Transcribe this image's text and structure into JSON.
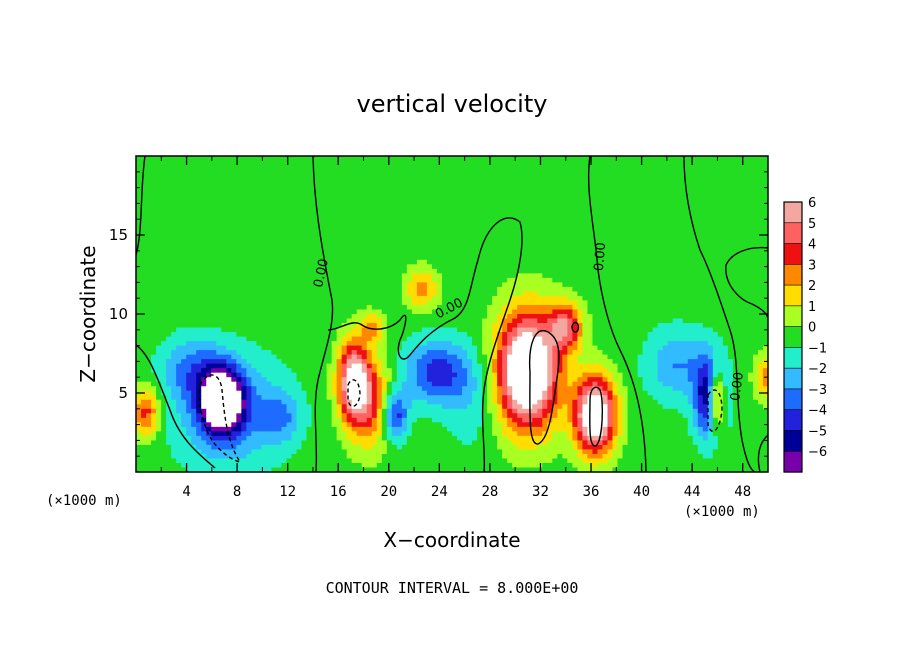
{
  "chart_data": {
    "type": "heatmap",
    "title": "vertical velocity",
    "xlabel": "X−coordinate",
    "ylabel": "Z−coordinate",
    "x_unit_left": "(×1000 m)",
    "x_unit_right": "(×1000 m)",
    "xlim": [
      0,
      50
    ],
    "ylim": [
      0,
      20
    ],
    "x_ticks": [
      4,
      8,
      12,
      16,
      20,
      24,
      28,
      32,
      36,
      40,
      44,
      48
    ],
    "y_ticks": [
      5,
      10,
      15
    ],
    "colorbar": {
      "levels": [
        6,
        5,
        4,
        3,
        2,
        1,
        0,
        -1,
        -2,
        -3,
        -4,
        -5,
        -6
      ],
      "labels": [
        "6",
        "5",
        "4",
        "3",
        "2",
        "1",
        "0",
        "−1",
        "−2",
        "−3",
        "−4",
        "−5",
        "−6"
      ],
      "colors": [
        "#f2a7a0",
        "#ff6060",
        "#ee1111",
        "#ff8800",
        "#ffdd00",
        "#aaff22",
        "#22dd22",
        "#22eecc",
        "#33bbff",
        "#1e6cff",
        "#2222dd",
        "#000099",
        "#7700aa"
      ]
    },
    "contour_labels": [
      "0.00",
      "0.00",
      "0.00",
      "0.00"
    ],
    "annotation": "CONTOUR INTERVAL = 8.000E+00",
    "grid": false,
    "legend_placement": "right",
    "features": [
      {
        "x": 6.8,
        "z": 4.5,
        "value": -9,
        "sx": 1.6,
        "sz": 1.9
      },
      {
        "x": 7.4,
        "z": 3.8,
        "value": -3,
        "sx": 4.2,
        "sz": 3.4
      },
      {
        "x": 4.5,
        "z": 6.5,
        "value": -2.4,
        "sx": 2.5,
        "sz": 2.0
      },
      {
        "x": 17.2,
        "z": 5.8,
        "value": 7,
        "sx": 1.2,
        "sz": 2.4
      },
      {
        "x": 18.5,
        "z": 4.4,
        "value": 4,
        "sx": 1.8,
        "sz": 2.8
      },
      {
        "x": 20.5,
        "z": 3.6,
        "value": -4.5,
        "sx": 1.0,
        "sz": 1.6
      },
      {
        "x": 23.8,
        "z": 6.3,
        "value": -4,
        "sx": 2.6,
        "sz": 2.0
      },
      {
        "x": 22.6,
        "z": 11.6,
        "value": 3,
        "sx": 1.3,
        "sz": 1.3
      },
      {
        "x": 18.7,
        "z": 9.1,
        "value": 2.5,
        "sx": 1.0,
        "sz": 1.0
      },
      {
        "x": 31.0,
        "z": 6.4,
        "value": 10,
        "sx": 2.4,
        "sz": 3.6
      },
      {
        "x": 36.3,
        "z": 3.6,
        "value": 9,
        "sx": 1.6,
        "sz": 2.4
      },
      {
        "x": 34.0,
        "z": 9.2,
        "value": 5,
        "sx": 1.3,
        "sz": 1.5
      },
      {
        "x": 45.5,
        "z": 4.7,
        "value": -7,
        "sx": 1.2,
        "sz": 2.5
      },
      {
        "x": 45.9,
        "z": 4.6,
        "value": 8,
        "sx": 0.7,
        "sz": 2.0
      },
      {
        "x": 42.8,
        "z": 6.8,
        "value": -2.5,
        "sx": 2.4,
        "sz": 2.2
      },
      {
        "x": 0.8,
        "z": 3.8,
        "value": 4,
        "sx": 1.1,
        "sz": 1.6
      },
      {
        "x": 49.8,
        "z": 6.0,
        "value": 3,
        "sx": 0.9,
        "sz": 1.4
      },
      {
        "x": 11.5,
        "z": 3.5,
        "value": -2,
        "sx": 1.5,
        "sz": 1.6
      },
      {
        "x": 26.5,
        "z": 4.5,
        "value": -1.2,
        "sx": 2.0,
        "sz": 3.0
      },
      {
        "x": 9.0,
        "z": 15.0,
        "value": 0.4,
        "sx": 5.0,
        "sz": 4.0
      },
      {
        "x": 27.0,
        "z": 17.0,
        "value": -0.4,
        "sx": 5.0,
        "sz": 2.5
      },
      {
        "x": 48.0,
        "z": 12.0,
        "value": 0.5,
        "sx": 2.0,
        "sz": 2.0
      }
    ]
  }
}
